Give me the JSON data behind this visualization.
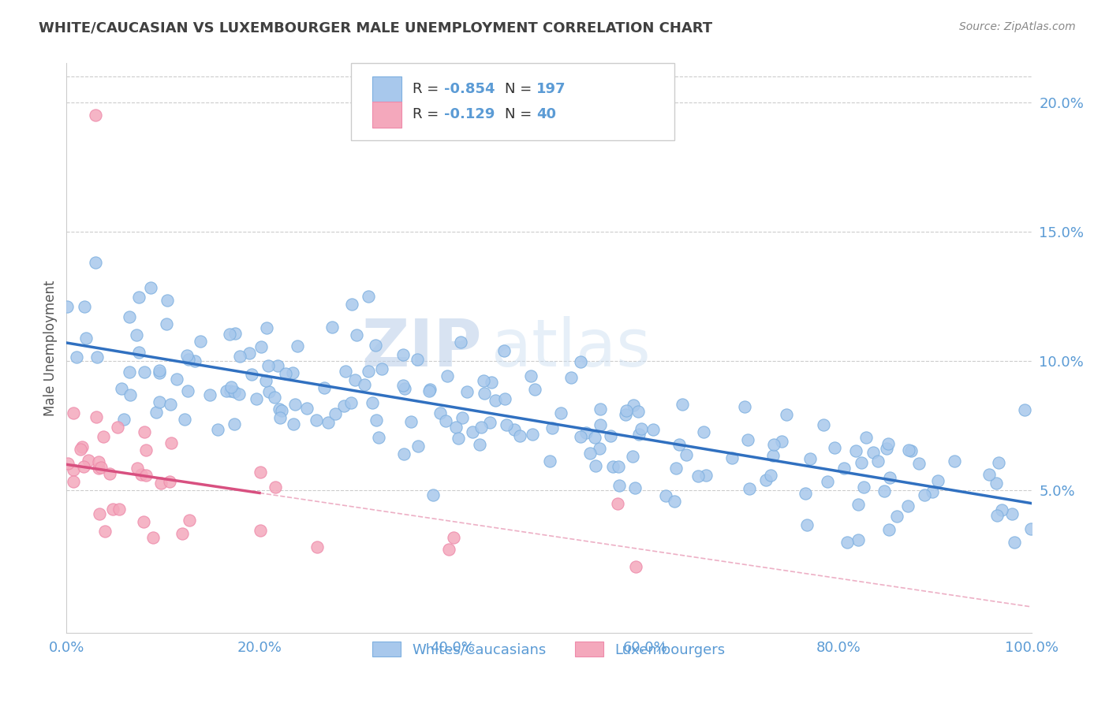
{
  "title": "WHITE/CAUCASIAN VS LUXEMBOURGER MALE UNEMPLOYMENT CORRELATION CHART",
  "source": "Source: ZipAtlas.com",
  "ylabel": "Male Unemployment",
  "xlim": [
    0,
    100
  ],
  "ylim": [
    -0.005,
    0.215
  ],
  "yticks": [
    0.05,
    0.1,
    0.15,
    0.2
  ],
  "ytick_labels": [
    "5.0%",
    "10.0%",
    "15.0%",
    "20.0%"
  ],
  "xticks": [
    0,
    20,
    40,
    60,
    80,
    100
  ],
  "xtick_labels": [
    "0.0%",
    "20.0%",
    "40.0%",
    "60.0%",
    "80.0%",
    "100.0%"
  ],
  "blue_color": "#A8C8EC",
  "pink_color": "#F4A8BC",
  "blue_edge_color": "#7EB0E0",
  "pink_edge_color": "#EE8AAA",
  "blue_line_color": "#3070C0",
  "pink_line_color": "#D85080",
  "blue_R": -0.854,
  "blue_N": 197,
  "pink_R": -0.129,
  "pink_N": 40,
  "blue_intercept": 0.107,
  "blue_slope": -0.00062,
  "pink_intercept": 0.06,
  "pink_slope": -0.00055,
  "watermark_zip": "ZIP",
  "watermark_atlas": "atlas",
  "legend_label1": "Whites/Caucasians",
  "legend_label2": "Luxembourgers",
  "background_color": "#FFFFFF",
  "grid_color": "#CCCCCC",
  "tick_color": "#5B9BD5",
  "title_color": "#404040",
  "legend_text_color": "#5B9BD5"
}
